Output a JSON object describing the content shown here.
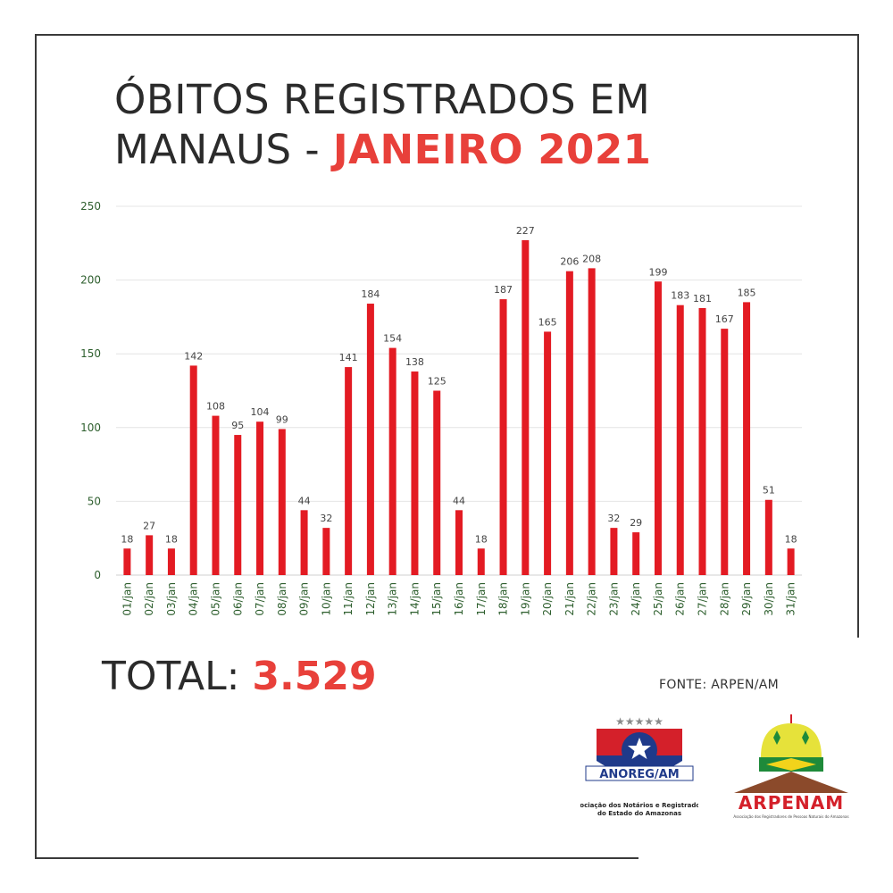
{
  "title": {
    "line1": "ÓBITOS REGISTRADOS EM",
    "line2_prefix": "MANAUS - ",
    "line2_accent": "JANEIRO 2021"
  },
  "total": {
    "label": "TOTAL: ",
    "value": "3.529"
  },
  "source": "FONTE: ARPEN/AM",
  "logos": {
    "anoreg": {
      "name": "ANOREG/AM",
      "subtitle1": "Associação dos Notários e Registradores",
      "subtitle2": "do Estado do Amazonas"
    },
    "arpen": {
      "name": "ARPENAM",
      "subtitle": "Associação dos Registradores de Pessoas Naturais do Amazonas"
    }
  },
  "colors": {
    "bar": "#e31b23",
    "accent": "#e8403a",
    "grid": "#e4e4e4",
    "axis_text": "#2e5f2e"
  },
  "chart_data": {
    "type": "bar",
    "categories": [
      "01/jan",
      "02/jan",
      "03/jan",
      "04/jan",
      "05/jan",
      "06/jan",
      "07/jan",
      "08/jan",
      "09/jan",
      "10/jan",
      "11/jan",
      "12/jan",
      "13/jan",
      "14/jan",
      "15/jan",
      "16/jan",
      "17/jan",
      "18/jan",
      "19/jan",
      "20/jan",
      "21/jan",
      "22/jan",
      "23/jan",
      "24/jan",
      "25/jan",
      "26/jan",
      "27/jan",
      "28/jan",
      "29/jan",
      "30/jan",
      "31/jan"
    ],
    "values": [
      18,
      27,
      18,
      142,
      108,
      95,
      104,
      99,
      44,
      32,
      141,
      184,
      154,
      138,
      125,
      44,
      18,
      187,
      227,
      165,
      206,
      208,
      32,
      29,
      199,
      183,
      181,
      167,
      185,
      51,
      18
    ],
    "yticks": [
      0,
      50,
      100,
      150,
      200,
      250
    ],
    "ylim": [
      0,
      250
    ],
    "grid": true,
    "data_labels": true
  }
}
